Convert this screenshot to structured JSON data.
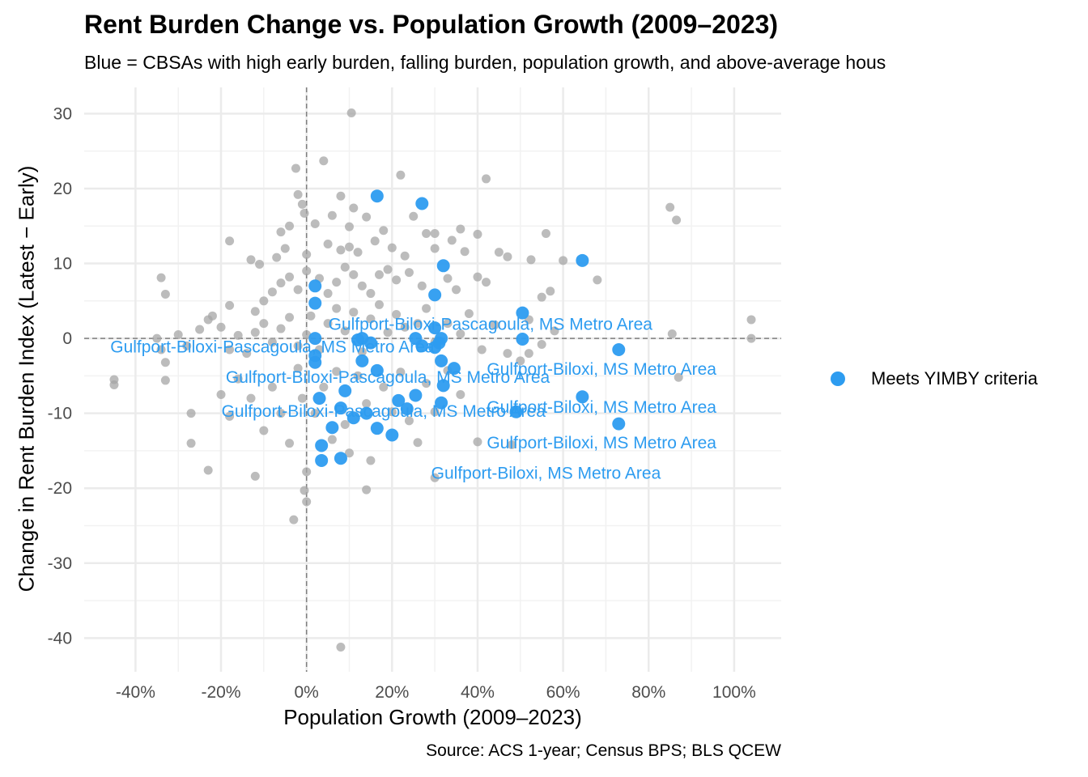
{
  "title": "Rent Burden Change vs. Population Growth (2009–2023)",
  "subtitle": "Blue = CBSAs with high early burden, falling burden, population growth, and above-average hous",
  "caption": "Source: ACS 1-year; Census BPS; BLS QCEW",
  "legend": {
    "label": "Meets YIMBY criteria",
    "color": "#2d9cf0"
  },
  "chart_data": {
    "type": "scatter",
    "title": "Rent Burden Change vs. Population Growth (2009–2023)",
    "subtitle": "Blue = CBSAs with high early burden, falling burden, population growth, and above-average hous",
    "xlabel": "Population Growth (2009–2023)",
    "ylabel": "Change in Rent Burden Index (Latest − Early)",
    "xlim": [
      -0.52,
      1.11
    ],
    "ylim": [
      -44.5,
      33.5
    ],
    "x_ticks": [
      -0.4,
      -0.2,
      0,
      0.2,
      0.4,
      0.6,
      0.8,
      1.0
    ],
    "x_tick_labels": [
      "-40%",
      "-20%",
      "0%",
      "20%",
      "40%",
      "60%",
      "80%",
      "100%"
    ],
    "y_ticks": [
      -40,
      -30,
      -20,
      -10,
      0,
      10,
      20,
      30
    ],
    "y_tick_labels": [
      "-40",
      "-30",
      "-20",
      "-10",
      "0",
      "10",
      "20",
      "30"
    ],
    "grid": true,
    "legend_position": "right",
    "reference_lines": {
      "x": 0,
      "y": 0
    },
    "colors": {
      "other": "#a6a6a6",
      "highlight": "#2d9cf0"
    },
    "series": [
      {
        "name": "Meets YIMBY criteria",
        "color": "#2d9cf0",
        "points": [
          [
            0.02,
            7.0
          ],
          [
            0.02,
            4.7
          ],
          [
            0.02,
            0.0
          ],
          [
            0.02,
            -2.3
          ],
          [
            0.02,
            -3.2
          ],
          [
            0.03,
            -8.0
          ],
          [
            0.035,
            -14.3
          ],
          [
            0.035,
            -16.3
          ],
          [
            0.06,
            -11.9
          ],
          [
            0.08,
            -9.3
          ],
          [
            0.08,
            -16.0
          ],
          [
            0.09,
            -7.0
          ],
          [
            0.11,
            -10.6
          ],
          [
            0.12,
            -0.2
          ],
          [
            0.13,
            0.0
          ],
          [
            0.13,
            -3.0
          ],
          [
            0.14,
            -10.0
          ],
          [
            0.15,
            -0.6
          ],
          [
            0.165,
            19.0
          ],
          [
            0.165,
            -4.3
          ],
          [
            0.165,
            -12.0
          ],
          [
            0.2,
            -12.9
          ],
          [
            0.215,
            -8.3
          ],
          [
            0.235,
            -9.4
          ],
          [
            0.255,
            -7.6
          ],
          [
            0.255,
            0.0
          ],
          [
            0.27,
            18.0
          ],
          [
            0.27,
            -1.0
          ],
          [
            0.3,
            5.8
          ],
          [
            0.3,
            1.4
          ],
          [
            0.3,
            -1.2
          ],
          [
            0.31,
            -0.6
          ],
          [
            0.315,
            0.0
          ],
          [
            0.315,
            -3.0
          ],
          [
            0.315,
            -8.6
          ],
          [
            0.32,
            9.7
          ],
          [
            0.32,
            -6.3
          ],
          [
            0.345,
            -4.0
          ],
          [
            0.49,
            -9.8
          ],
          [
            0.505,
            3.4
          ],
          [
            0.505,
            -0.1
          ],
          [
            0.645,
            10.4
          ],
          [
            0.645,
            -7.8
          ],
          [
            0.73,
            -1.5
          ],
          [
            0.73,
            -11.4
          ]
        ]
      },
      {
        "name": "",
        "color": "#a6a6a6",
        "points": [
          [
            0.105,
            30.1
          ],
          [
            -0.025,
            22.7
          ],
          [
            0.04,
            23.7
          ],
          [
            0.22,
            21.8
          ],
          [
            0.42,
            21.3
          ],
          [
            -0.02,
            19.2
          ],
          [
            -0.01,
            17.9
          ],
          [
            -0.005,
            16.7
          ],
          [
            0.08,
            19.0
          ],
          [
            0.11,
            17.4
          ],
          [
            0.14,
            16.2
          ],
          [
            0.25,
            16.3
          ],
          [
            0.3,
            14.0
          ],
          [
            0.36,
            14.6
          ],
          [
            0.85,
            17.5
          ],
          [
            0.865,
            15.8
          ],
          [
            -0.06,
            14.2
          ],
          [
            -0.04,
            15.0
          ],
          [
            0.02,
            15.3
          ],
          [
            0.06,
            16.4
          ],
          [
            0.1,
            14.9
          ],
          [
            0.18,
            14.4
          ],
          [
            0.28,
            14.0
          ],
          [
            0.34,
            13.1
          ],
          [
            0.4,
            13.9
          ],
          [
            0.56,
            14.0
          ],
          [
            -0.18,
            13.0
          ],
          [
            -0.13,
            10.5
          ],
          [
            -0.11,
            9.9
          ],
          [
            -0.07,
            10.8
          ],
          [
            -0.05,
            12.0
          ],
          [
            0.0,
            11.2
          ],
          [
            0.05,
            12.6
          ],
          [
            0.08,
            11.8
          ],
          [
            0.1,
            12.2
          ],
          [
            0.12,
            11.5
          ],
          [
            0.16,
            13.0
          ],
          [
            0.2,
            12.1
          ],
          [
            0.23,
            11.0
          ],
          [
            0.3,
            12.0
          ],
          [
            0.37,
            11.6
          ],
          [
            0.45,
            11.5
          ],
          [
            0.47,
            10.9
          ],
          [
            0.525,
            10.5
          ],
          [
            0.6,
            10.4
          ],
          [
            0.68,
            7.8
          ],
          [
            -0.34,
            8.1
          ],
          [
            -0.33,
            5.9
          ],
          [
            -0.18,
            4.4
          ],
          [
            -0.12,
            3.6
          ],
          [
            -0.1,
            5.0
          ],
          [
            -0.08,
            6.2
          ],
          [
            -0.06,
            7.4
          ],
          [
            -0.04,
            8.2
          ],
          [
            -0.02,
            6.5
          ],
          [
            0.0,
            9.0
          ],
          [
            0.03,
            8.0
          ],
          [
            0.05,
            6.0
          ],
          [
            0.07,
            7.5
          ],
          [
            0.09,
            9.5
          ],
          [
            0.11,
            8.5
          ],
          [
            0.13,
            7.0
          ],
          [
            0.15,
            6.0
          ],
          [
            0.17,
            8.5
          ],
          [
            0.19,
            9.2
          ],
          [
            0.21,
            7.8
          ],
          [
            0.24,
            8.8
          ],
          [
            0.27,
            7.0
          ],
          [
            0.33,
            8.0
          ],
          [
            0.35,
            6.5
          ],
          [
            0.4,
            8.2
          ],
          [
            0.42,
            7.5
          ],
          [
            0.55,
            5.5
          ],
          [
            0.57,
            6.3
          ],
          [
            -0.45,
            -5.5
          ],
          [
            -0.45,
            -6.2
          ],
          [
            -0.35,
            0.0
          ],
          [
            -0.34,
            -1.5
          ],
          [
            -0.33,
            -3.2
          ],
          [
            -0.33,
            -5.6
          ],
          [
            -0.3,
            0.5
          ],
          [
            -0.28,
            -1.0
          ],
          [
            -0.25,
            1.2
          ],
          [
            -0.23,
            2.5
          ],
          [
            -0.22,
            3.0
          ],
          [
            -0.2,
            1.5
          ],
          [
            -0.18,
            -1.5
          ],
          [
            -0.16,
            0.4
          ],
          [
            -0.14,
            -2.0
          ],
          [
            -0.12,
            0.8
          ],
          [
            -0.1,
            2.0
          ],
          [
            -0.08,
            -0.5
          ],
          [
            -0.06,
            1.3
          ],
          [
            -0.04,
            2.8
          ],
          [
            -0.02,
            -1.0
          ],
          [
            0.0,
            0.5
          ],
          [
            0.01,
            3.0
          ],
          [
            0.03,
            -1.5
          ],
          [
            0.05,
            2.0
          ],
          [
            0.07,
            4.0
          ],
          [
            0.09,
            1.0
          ],
          [
            0.11,
            3.5
          ],
          [
            0.13,
            -1.8
          ],
          [
            0.15,
            2.6
          ],
          [
            0.17,
            4.5
          ],
          [
            0.19,
            0.8
          ],
          [
            0.21,
            3.2
          ],
          [
            0.23,
            1.5
          ],
          [
            0.26,
            2.0
          ],
          [
            0.28,
            4.0
          ],
          [
            0.3,
            -0.5
          ],
          [
            0.33,
            2.0
          ],
          [
            0.36,
            0.6
          ],
          [
            0.38,
            3.3
          ],
          [
            0.41,
            -1.5
          ],
          [
            0.44,
            1.8
          ],
          [
            0.47,
            -2.0
          ],
          [
            0.52,
            2.5
          ],
          [
            0.55,
            -0.8
          ],
          [
            0.58,
            1.0
          ],
          [
            1.04,
            2.5
          ],
          [
            1.04,
            0.0
          ],
          [
            0.855,
            0.6
          ],
          [
            0.87,
            -5.2
          ],
          [
            -0.27,
            -10.0
          ],
          [
            -0.27,
            -14.0
          ],
          [
            -0.23,
            -17.6
          ],
          [
            -0.2,
            -7.5
          ],
          [
            -0.18,
            -10.4
          ],
          [
            -0.16,
            -5.4
          ],
          [
            -0.13,
            -8.0
          ],
          [
            -0.12,
            -18.4
          ],
          [
            -0.1,
            -12.3
          ],
          [
            -0.08,
            -6.5
          ],
          [
            -0.06,
            -10.0
          ],
          [
            -0.04,
            -14.0
          ],
          [
            -0.03,
            -24.2
          ],
          [
            -0.02,
            -4.0
          ],
          [
            -0.01,
            -8.0
          ],
          [
            0.0,
            -17.8
          ],
          [
            -0.005,
            -20.3
          ],
          [
            0.0,
            -21.8
          ],
          [
            0.02,
            -10.0
          ],
          [
            0.04,
            -6.5
          ],
          [
            0.06,
            -13.5
          ],
          [
            0.07,
            -4.4
          ],
          [
            0.09,
            -11.5
          ],
          [
            0.1,
            -15.3
          ],
          [
            0.12,
            -5.0
          ],
          [
            0.14,
            -8.7
          ],
          [
            0.15,
            -16.3
          ],
          [
            0.14,
            -20.2
          ],
          [
            0.18,
            -6.5
          ],
          [
            0.2,
            -9.8
          ],
          [
            0.22,
            -4.5
          ],
          [
            0.24,
            -11.0
          ],
          [
            0.26,
            -13.9
          ],
          [
            0.28,
            -6.0
          ],
          [
            0.3,
            -9.8
          ],
          [
            0.3,
            -18.6
          ],
          [
            0.33,
            -4.3
          ],
          [
            0.36,
            -7.5
          ],
          [
            0.4,
            -13.8
          ],
          [
            0.48,
            -14.2
          ],
          [
            0.5,
            -3.0
          ],
          [
            0.52,
            -2.0
          ],
          [
            0.08,
            -41.2
          ]
        ]
      }
    ],
    "annotations": [
      {
        "text": "Gulfport-Biloxi-Pascagoula, MS Metro Area",
        "x": 0.43,
        "y": 1.9
      },
      {
        "text": "Gulfport-Biloxi-Pascagoula, MS Metro Area",
        "x": -0.08,
        "y": -1.1
      },
      {
        "text": "Gulfport-Biloxi-Pascagoula, MS Metro Area",
        "x": 0.19,
        "y": -5.2
      },
      {
        "text": "Gulfport-Biloxi-Pascagoula, MS Metro Area",
        "x": 0.18,
        "y": -9.7
      },
      {
        "text": "Gulfport-Biloxi, MS Metro Area",
        "x": 0.69,
        "y": -4.1
      },
      {
        "text": "Gulfport-Biloxi, MS Metro Area",
        "x": 0.69,
        "y": -9.2
      },
      {
        "text": "Gulfport-Biloxi, MS Metro Area",
        "x": 0.69,
        "y": -13.9
      },
      {
        "text": "Gulfport-Biloxi, MS Metro Area",
        "x": 0.56,
        "y": -18.0
      }
    ]
  }
}
